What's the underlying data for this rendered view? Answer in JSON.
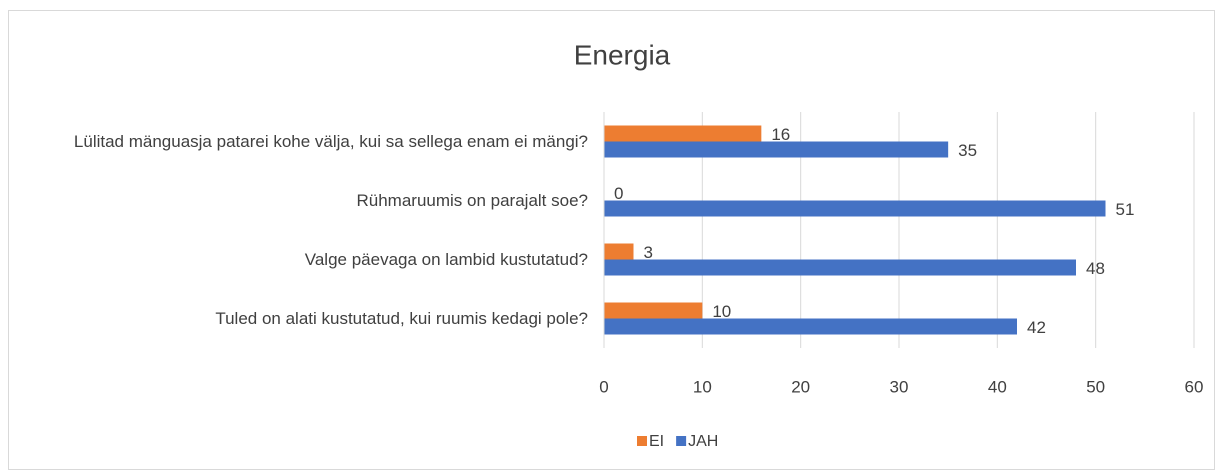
{
  "chart_data": {
    "type": "bar",
    "orientation": "horizontal",
    "title": "Energia",
    "categories": [
      "Lülitad mänguasja patarei kohe välja, kui sa sellega enam ei mängi?",
      "Rühmaruumis on parajalt soe?",
      "Valge päevaga on lambid kustutatud?",
      "Tuled on alati kustutatud, kui ruumis kedagi pole?"
    ],
    "series": [
      {
        "name": "EI",
        "color": "#ed7d31",
        "values": [
          16,
          0,
          3,
          10
        ]
      },
      {
        "name": "JAH",
        "color": "#4472c4",
        "values": [
          35,
          51,
          48,
          42
        ]
      }
    ],
    "xlim": [
      0,
      60
    ],
    "xticks": [
      0,
      10,
      20,
      30,
      40,
      50,
      60
    ],
    "grid": true,
    "legend": "bottom"
  }
}
